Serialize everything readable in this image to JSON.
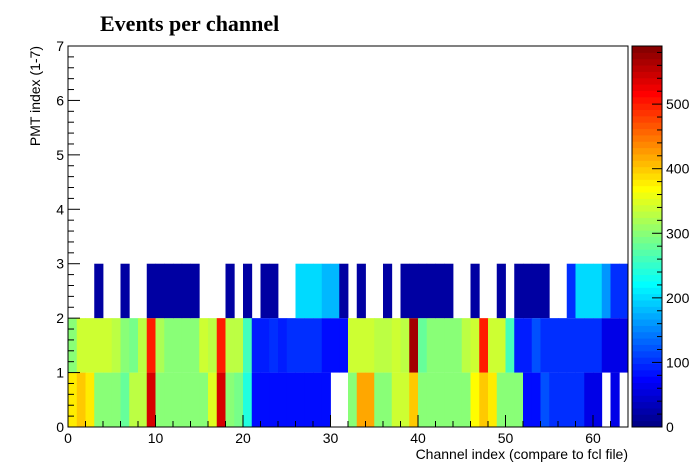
{
  "chart_data": {
    "type": "heatmap",
    "title": "Events per channel",
    "xlabel": "Channel index (compare to fcl file)",
    "ylabel": "PMT index (1-7)",
    "xlim": [
      0,
      64
    ],
    "ylim": [
      0,
      7
    ],
    "x_ticks": [
      0,
      10,
      20,
      30,
      40,
      50,
      60
    ],
    "y_ticks": [
      0,
      1,
      2,
      3,
      4,
      5,
      6,
      7
    ],
    "colorbar": {
      "min": 0,
      "max": 590,
      "ticks": [
        0,
        100,
        200,
        300,
        400,
        500
      ],
      "palette": [
        "#00007f",
        "#0000ff",
        "#0080ff",
        "#00ffff",
        "#80ff80",
        "#ffff00",
        "#ff8000",
        "#ff0000",
        "#800000"
      ]
    },
    "rows": [
      {
        "y_range": [
          0,
          1
        ],
        "values": [
          380,
          400,
          380,
          300,
          300,
          300,
          280,
          330,
          330,
          540,
          300,
          300,
          300,
          300,
          300,
          300,
          350,
          540,
          300,
          290,
          240,
          80,
          80,
          80,
          80,
          80,
          80,
          80,
          80,
          80,
          0,
          0,
          300,
          420,
          420,
          300,
          300,
          340,
          340,
          400,
          300,
          300,
          300,
          300,
          300,
          300,
          370,
          400,
          380,
          300,
          300,
          300,
          80,
          80,
          120,
          100,
          100,
          100,
          100,
          60,
          60,
          0,
          60,
          0
        ]
      },
      {
        "y_range": [
          1,
          2
        ],
        "values": [
          300,
          340,
          340,
          340,
          340,
          330,
          300,
          290,
          330,
          500,
          320,
          300,
          300,
          300,
          300,
          340,
          330,
          500,
          330,
          330,
          260,
          90,
          90,
          100,
          90,
          100,
          100,
          100,
          100,
          80,
          80,
          80,
          340,
          340,
          340,
          330,
          330,
          340,
          330,
          570,
          280,
          300,
          300,
          300,
          300,
          330,
          340,
          500,
          340,
          340,
          260,
          90,
          90,
          120,
          100,
          100,
          100,
          100,
          100,
          100,
          100,
          60,
          60,
          60
        ]
      },
      {
        "y_range": [
          2,
          3
        ],
        "values": [
          0,
          0,
          0,
          20,
          0,
          0,
          20,
          0,
          0,
          20,
          20,
          20,
          20,
          20,
          20,
          0,
          0,
          0,
          20,
          0,
          20,
          0,
          20,
          20,
          0,
          0,
          200,
          200,
          200,
          180,
          180,
          20,
          0,
          20,
          0,
          0,
          20,
          0,
          20,
          20,
          20,
          20,
          20,
          20,
          0,
          0,
          20,
          0,
          0,
          20,
          0,
          20,
          20,
          20,
          20,
          0,
          0,
          100,
          200,
          200,
          200,
          160,
          100,
          100
        ]
      }
    ]
  }
}
